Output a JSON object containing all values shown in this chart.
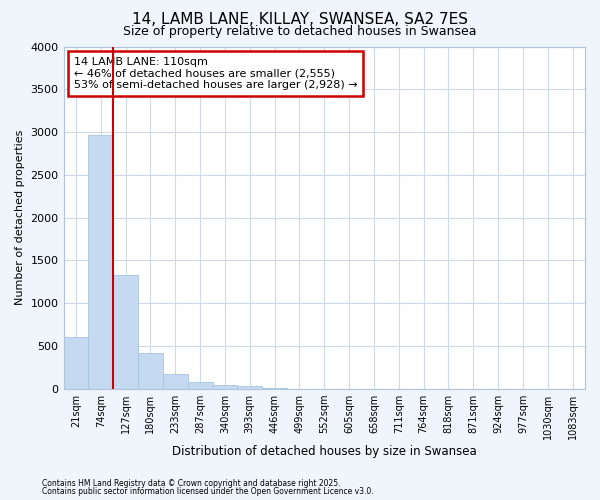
{
  "title_line1": "14, LAMB LANE, KILLAY, SWANSEA, SA2 7ES",
  "title_line2": "Size of property relative to detached houses in Swansea",
  "xlabel": "Distribution of detached houses by size in Swansea",
  "ylabel": "Number of detached properties",
  "categories": [
    "21sqm",
    "74sqm",
    "127sqm",
    "180sqm",
    "233sqm",
    "287sqm",
    "340sqm",
    "393sqm",
    "446sqm",
    "499sqm",
    "552sqm",
    "605sqm",
    "658sqm",
    "711sqm",
    "764sqm",
    "818sqm",
    "871sqm",
    "924sqm",
    "977sqm",
    "1030sqm",
    "1083sqm"
  ],
  "values": [
    600,
    2970,
    1330,
    420,
    175,
    80,
    45,
    30,
    10,
    0,
    0,
    0,
    0,
    0,
    0,
    0,
    0,
    0,
    0,
    0,
    0
  ],
  "bar_color": "#c5d9f0",
  "bar_edge_color": "#a8c4e0",
  "vline_color": "#cc0000",
  "vline_x": 1.5,
  "ylim": [
    0,
    4000
  ],
  "yticks": [
    0,
    500,
    1000,
    1500,
    2000,
    2500,
    3000,
    3500,
    4000
  ],
  "annotation_title": "14 LAMB LANE: 110sqm",
  "annotation_line1": "← 46% of detached houses are smaller (2,555)",
  "annotation_line2": "53% of semi-detached houses are larger (2,928) →",
  "annotation_box_color": "#cc0000",
  "annotation_bg_color": "#ffffff",
  "grid_color": "#ccdaec",
  "bg_color": "#f0f4fb",
  "plot_bg_color": "#ffffff",
  "spine_color": "#b0c4de",
  "footnote1": "Contains HM Land Registry data © Crown copyright and database right 2025.",
  "footnote2": "Contains public sector information licensed under the Open Government Licence v3.0."
}
